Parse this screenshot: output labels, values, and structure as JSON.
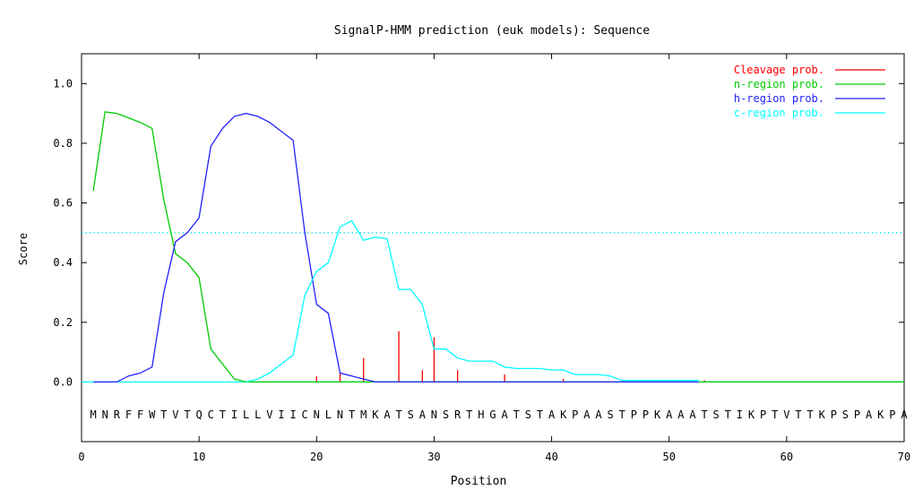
{
  "chart_data": {
    "type": "line",
    "title": "SignalP-HMM prediction (euk models): Sequence",
    "xlabel": "Position",
    "ylabel": "Score",
    "xlim": [
      0,
      70
    ],
    "ylim": [
      -0.2,
      1.1
    ],
    "x_ticks": [
      0,
      10,
      20,
      30,
      40,
      50,
      60,
      70
    ],
    "y_ticks": [
      0.0,
      0.2,
      0.4,
      0.6,
      0.8,
      1.0
    ],
    "x_tick_labels": [
      "0",
      "10",
      "20",
      "30",
      "40",
      "50",
      "60",
      "70"
    ],
    "y_tick_labels": [
      "0.0",
      "0.2",
      "0.4",
      "0.6",
      "0.8",
      "1.0"
    ],
    "grid": false,
    "legend_position": "top-right",
    "threshold": {
      "y": 0.5,
      "color": "#00e0e0"
    },
    "sequence": "MNRFFWTVTQCTILLVIICNLNTMKATSANSRTHGATSTAKPAASTPPKAAATSTIKPTVTTKPSPAKPA",
    "sequence_y": -0.11,
    "series": [
      {
        "name": "Cleavage prob.",
        "color": "#ff0000",
        "style": "impulse",
        "x": [
          20,
          22,
          24,
          27,
          29,
          30,
          32,
          36,
          41,
          53
        ],
        "y": [
          0.02,
          0.03,
          0.08,
          0.17,
          0.04,
          0.15,
          0.04,
          0.025,
          0.01,
          0.005
        ]
      },
      {
        "name": "n-region prob.",
        "color": "#00cc00",
        "style": "line",
        "x": [
          1,
          2,
          3,
          4,
          5,
          6,
          7,
          8,
          9,
          10,
          11,
          12,
          13,
          14,
          15,
          16,
          17,
          18,
          19,
          20,
          21,
          22,
          23,
          24,
          25,
          30,
          40,
          50,
          60,
          70
        ],
        "y": [
          0.64,
          0.905,
          0.9,
          0.885,
          0.87,
          0.85,
          0.61,
          0.43,
          0.4,
          0.35,
          0.11,
          0.06,
          0.01,
          0.0,
          0.0,
          0.0,
          0.0,
          0.0,
          0.0,
          0.0,
          0.0,
          0.0,
          0.0,
          0.0,
          0.0,
          0.0,
          0.0,
          0.0,
          0.0,
          0.0
        ]
      },
      {
        "name": "h-region prob.",
        "color": "#2222ff",
        "style": "line",
        "x": [
          1,
          2,
          3,
          4,
          5,
          6,
          7,
          8,
          9,
          10,
          11,
          12,
          13,
          14,
          15,
          16,
          17,
          18,
          19,
          20,
          21,
          22,
          23,
          24,
          25,
          30,
          40,
          50,
          52.5
        ],
        "y": [
          0.0,
          0.0,
          0.0,
          0.02,
          0.03,
          0.05,
          0.3,
          0.47,
          0.5,
          0.55,
          0.79,
          0.85,
          0.89,
          0.9,
          0.89,
          0.87,
          0.84,
          0.81,
          0.5,
          0.26,
          0.23,
          0.03,
          0.02,
          0.01,
          0.0,
          0.0,
          0.0,
          0.0,
          0.0
        ]
      },
      {
        "name": "c-region prob.",
        "color": "#00ffff",
        "style": "line",
        "x": [
          14,
          15,
          16,
          17,
          18,
          19,
          20,
          21,
          22,
          23,
          24,
          25,
          26,
          27,
          28,
          29,
          30,
          31,
          32,
          33,
          34,
          35,
          36,
          37,
          38,
          39,
          40,
          41,
          42,
          43,
          44,
          45,
          46,
          47,
          48,
          49,
          50,
          51,
          52,
          52.5
        ],
        "y": [
          0.0,
          0.01,
          0.03,
          0.06,
          0.09,
          0.29,
          0.37,
          0.4,
          0.52,
          0.54,
          0.475,
          0.485,
          0.48,
          0.31,
          0.31,
          0.26,
          0.11,
          0.11,
          0.08,
          0.07,
          0.07,
          0.07,
          0.05,
          0.045,
          0.045,
          0.045,
          0.04,
          0.04,
          0.025,
          0.025,
          0.025,
          0.02,
          0.005,
          0.005,
          0.005,
          0.005,
          0.005,
          0.005,
          0.005,
          0.005
        ]
      }
    ]
  }
}
